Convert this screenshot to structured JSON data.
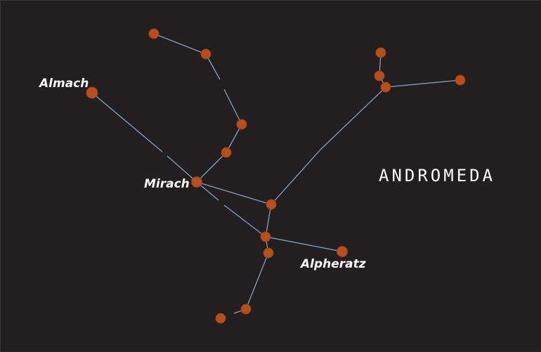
{
  "constellation": {
    "name": "ANDROMEDA",
    "labels": {
      "almach": "Almach",
      "mirach": "Mirach",
      "alpheratz": "Alpheratz"
    },
    "colors": {
      "background": "#231f20",
      "line": "#7ea3c7",
      "star": "#b5501c"
    }
  }
}
